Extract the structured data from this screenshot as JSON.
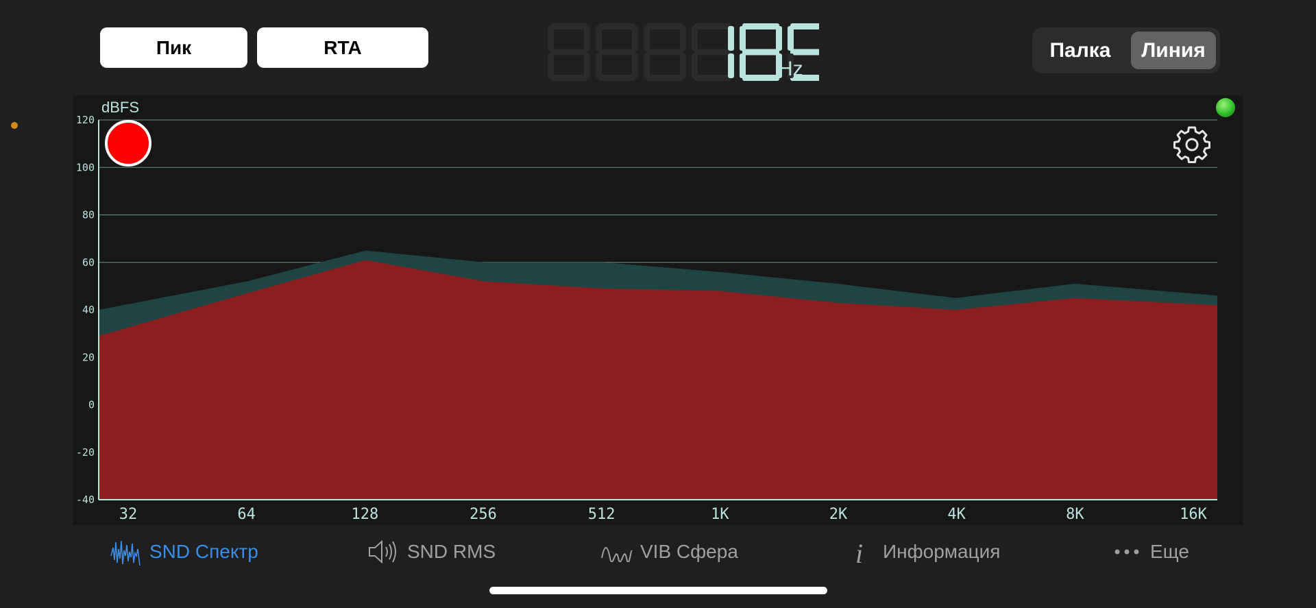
{
  "header": {
    "peak_label": "Пик",
    "rta_label": "RTA",
    "frequency": {
      "value": "185",
      "placeholder_digits": "888",
      "unit": "Hz"
    },
    "view_mode": {
      "options": [
        "Палка",
        "Линия"
      ],
      "selected": "Линия"
    }
  },
  "chart_data": {
    "type": "area",
    "ylabel": "dBFS",
    "xlabel": "",
    "ylim": [
      -40,
      120
    ],
    "yticks": [
      120,
      100,
      80,
      60,
      40,
      20,
      0,
      -20,
      -40
    ],
    "xticks": [
      "32",
      "64",
      "128",
      "256",
      "512",
      "1K",
      "2K",
      "4K",
      "8K",
      "16K"
    ],
    "grid": true,
    "series": [
      {
        "role": "peak",
        "color": "#1e4444",
        "points": [
          {
            "x": 20,
            "y": 40
          },
          {
            "x": 64,
            "y": 52
          },
          {
            "x": 128,
            "y": 65
          },
          {
            "x": 256,
            "y": 60
          },
          {
            "x": 512,
            "y": 60
          },
          {
            "x": 1000,
            "y": 56
          },
          {
            "x": 2000,
            "y": 51
          },
          {
            "x": 4000,
            "y": 45
          },
          {
            "x": 8000,
            "y": 51
          },
          {
            "x": 20000,
            "y": 46
          }
        ]
      },
      {
        "role": "current",
        "color": "#8b1f20",
        "points": [
          {
            "x": 20,
            "y": 29
          },
          {
            "x": 64,
            "y": 47
          },
          {
            "x": 128,
            "y": 61
          },
          {
            "x": 256,
            "y": 52
          },
          {
            "x": 512,
            "y": 49
          },
          {
            "x": 1000,
            "y": 48
          },
          {
            "x": 2000,
            "y": 43
          },
          {
            "x": 4000,
            "y": 40
          },
          {
            "x": 8000,
            "y": 45
          },
          {
            "x": 20000,
            "y": 42
          }
        ]
      }
    ]
  },
  "tabs": [
    {
      "label": "SND Спектр",
      "icon": "waveform-icon",
      "active": true
    },
    {
      "label": "SND RMS",
      "icon": "speaker-icon",
      "active": false
    },
    {
      "label": "VIB Сфера",
      "icon": "wave-icon",
      "active": false
    },
    {
      "label": "Информация",
      "icon": "info-icon",
      "active": false
    },
    {
      "label": "Еще",
      "icon": "more-dots-icon",
      "active": false
    }
  ],
  "colors": {
    "active_tab": "#3a8ee6",
    "inactive_tab": "#a0a0a0",
    "axis": "#b9e3dc",
    "record": "#ff0000",
    "led": "#2fbf2a"
  }
}
